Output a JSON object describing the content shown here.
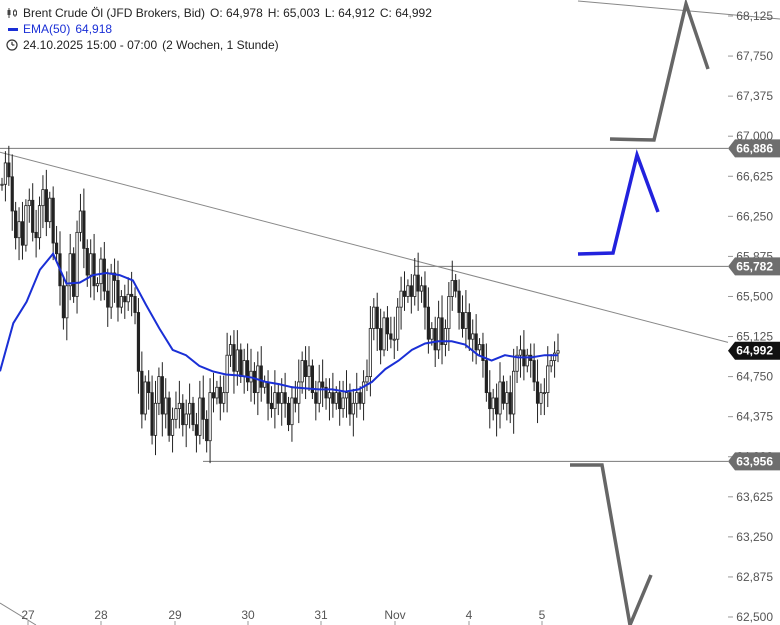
{
  "header": {
    "title": "Brent Crude Öl (JFD Brokers, Bid)",
    "open": "O: 64,978",
    "high": "H: 65,003",
    "low": "L: 64,912",
    "close": "C: 64,992",
    "ema_label": "EMA(50)",
    "ema_value": "64,918",
    "date_range": "24.10.2025 15:00 - 07:00",
    "interval": "(2 Wochen, 1 Stunde)"
  },
  "chart_data": {
    "type": "candlestick",
    "title": "Brent Crude Öl (JFD Brokers, Bid)",
    "ylim": [
      62.5,
      68.2
    ],
    "y_ticks": [
      "68,125",
      "67,750",
      "67,375",
      "67,000",
      "66,625",
      "66,250",
      "65,875",
      "65,500",
      "65,125",
      "64,750",
      "64,375",
      "64,000",
      "63,625",
      "63,250",
      "62,875",
      "62,500"
    ],
    "x_ticks": [
      "27",
      "28",
      "29",
      "30",
      "31",
      "Nov",
      "4",
      "5"
    ],
    "price_tags": [
      {
        "label": "66,886",
        "value": 66.886,
        "color": "#6e6e6e"
      },
      {
        "label": "65,782",
        "value": 65.782,
        "color": "#6e6e6e"
      },
      {
        "label": "64,992",
        "value": 64.992,
        "color": "#111111"
      },
      {
        "label": "63,956",
        "value": 63.956,
        "color": "#6e6e6e"
      }
    ],
    "close_series": [
      66.55,
      66.75,
      66.62,
      66.3,
      66.05,
      66.2,
      65.98,
      66.35,
      66.4,
      66.1,
      66.05,
      66.35,
      66.5,
      66.2,
      66.42,
      66.0,
      65.9,
      65.6,
      65.3,
      65.6,
      65.9,
      65.5,
      66.1,
      66.3,
      65.95,
      65.7,
      65.9,
      65.6,
      65.62,
      65.85,
      65.55,
      65.4,
      65.72,
      65.65,
      65.4,
      65.5,
      65.45,
      65.52,
      65.5,
      65.35,
      64.8,
      64.4,
      64.7,
      64.6,
      64.2,
      64.5,
      64.75,
      64.4,
      64.55,
      64.2,
      64.35,
      64.45,
      64.5,
      64.3,
      64.4,
      64.5,
      64.3,
      64.2,
      64.55,
      64.35,
      64.15,
      64.6,
      64.55,
      64.65,
      64.5,
      64.6,
      64.95,
      65.05,
      64.8,
      65.0,
      64.75,
      64.9,
      64.7,
      64.8,
      64.6,
      64.85,
      64.65,
      64.7,
      64.5,
      64.45,
      64.6,
      64.5,
      64.6,
      64.5,
      64.3,
      64.55,
      64.5,
      64.7,
      64.9,
      64.75,
      64.85,
      64.6,
      64.5,
      64.7,
      64.65,
      64.55,
      64.6,
      64.5,
      64.6,
      64.45,
      64.55,
      64.6,
      64.4,
      64.5,
      64.6,
      64.5,
      64.7,
      64.75,
      65.2,
      65.4,
      65.2,
      65.0,
      65.3,
      65.15,
      65.1,
      65.1,
      65.4,
      65.55,
      65.5,
      65.6,
      65.5,
      65.7,
      65.55,
      65.6,
      65.4,
      65.1,
      65.2,
      65.0,
      65.3,
      65.05,
      65.2,
      65.5,
      65.65,
      65.55,
      65.35,
      65.2,
      65.35,
      65.1,
      65.15,
      65.0,
      65.05,
      64.9,
      64.6,
      64.45,
      64.55,
      64.4,
      64.7,
      64.5,
      64.6,
      64.4,
      64.8,
      64.95,
      65.0,
      64.85,
      64.95,
      64.9,
      64.7,
      64.5,
      64.6,
      64.6,
      64.85,
      64.9,
      64.97,
      64.992
    ],
    "ema_series": [
      64.8,
      65.25,
      65.45,
      65.75,
      65.9,
      65.62,
      65.63,
      65.7,
      65.72,
      65.7,
      65.65,
      65.42,
      65.2,
      65.0,
      64.95,
      64.85,
      64.8,
      64.77,
      64.76,
      64.74,
      64.7,
      64.68,
      64.65,
      64.64,
      64.63,
      64.63,
      64.61,
      64.63,
      64.7,
      64.82,
      64.9,
      65.0,
      65.06,
      65.08,
      65.08,
      65.05,
      64.95,
      64.9,
      64.95,
      64.93,
      64.93,
      64.95,
      64.95
    ]
  }
}
